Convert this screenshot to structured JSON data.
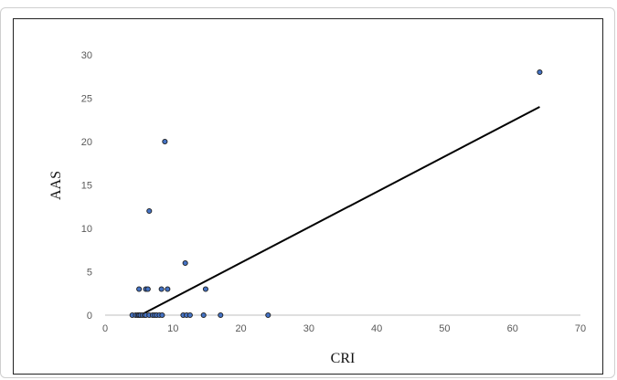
{
  "chart_data": {
    "type": "scatter",
    "xlabel": "CRI",
    "ylabel": "AAS",
    "xlim": [
      0,
      70
    ],
    "ylim": [
      0,
      30
    ],
    "xticks": [
      0,
      10,
      20,
      30,
      40,
      50,
      60,
      70
    ],
    "yticks": [
      0,
      5,
      10,
      15,
      20,
      25,
      30
    ],
    "grid": false,
    "legend": "none",
    "marker_color": "#4472c4",
    "marker_edge": "#1f1f1f",
    "trendline_color": "#000000",
    "series": [
      {
        "points": [
          [
            4,
            0
          ],
          [
            4.5,
            0
          ],
          [
            4.8,
            0
          ],
          [
            5,
            0
          ],
          [
            5.2,
            0
          ],
          [
            5.5,
            0
          ],
          [
            5.8,
            0
          ],
          [
            6,
            0
          ],
          [
            6.5,
            0
          ],
          [
            7,
            0
          ],
          [
            7.3,
            0
          ],
          [
            7.6,
            0
          ],
          [
            8,
            0
          ],
          [
            8.4,
            0
          ],
          [
            11.5,
            0
          ],
          [
            12,
            0
          ],
          [
            12.5,
            0
          ],
          [
            14.5,
            0
          ],
          [
            17,
            0
          ],
          [
            24,
            0
          ],
          [
            5,
            3
          ],
          [
            6,
            3
          ],
          [
            6.3,
            3
          ],
          [
            8.3,
            3
          ],
          [
            9.2,
            3
          ],
          [
            14.8,
            3
          ],
          [
            11.8,
            6
          ],
          [
            6.5,
            12
          ],
          [
            8.8,
            20
          ],
          [
            64,
            28
          ]
        ]
      }
    ],
    "trendline": {
      "x": [
        5.2,
        64
      ],
      "y": [
        0,
        24
      ]
    }
  }
}
